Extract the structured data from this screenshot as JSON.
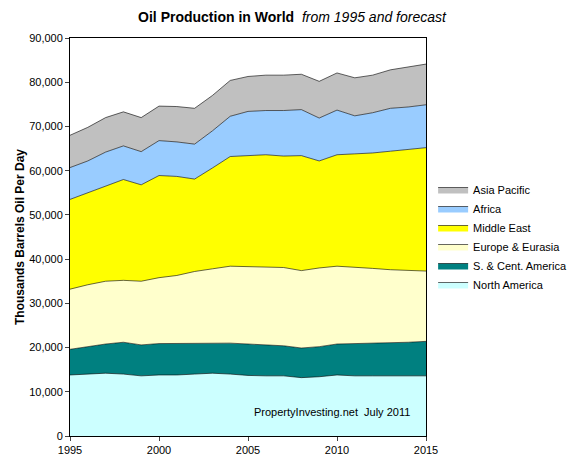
{
  "chart_data": {
    "type": "area",
    "title": "Oil Production in World",
    "subtitle": "from 1995 and forecast",
    "y_label": "Thousands Barrels Oil Per Day",
    "annotation": "PropertyInvesting.net  July 2011",
    "stacked": true,
    "grid": false,
    "legend": "right",
    "x": [
      1995,
      1996,
      1997,
      1998,
      1999,
      2000,
      2001,
      2002,
      2003,
      2004,
      2005,
      2006,
      2007,
      2008,
      2009,
      2010,
      2011,
      2012,
      2013,
      2014,
      2015
    ],
    "xlim": [
      1995,
      2015
    ],
    "xticks": [
      1995,
      2000,
      2005,
      2010,
      2015
    ],
    "ylim": [
      0,
      90000
    ],
    "yticks": [
      0,
      {
        "value": 10000,
        "label": "10,000"
      },
      {
        "value": 20000,
        "label": "20,000"
      },
      {
        "value": 30000,
        "label": "30,000"
      },
      {
        "value": 40000,
        "label": "40,000"
      },
      {
        "value": 50000,
        "label": "50,000"
      },
      {
        "value": 60000,
        "label": "60,000"
      },
      {
        "value": 70000,
        "label": "70,000"
      },
      {
        "value": 80000,
        "label": "80,000"
      },
      {
        "value": 90000,
        "label": "90,000"
      }
    ],
    "series": [
      {
        "name": "North America",
        "color": "#ccffff",
        "values": [
          13800,
          14000,
          14200,
          14000,
          13600,
          13800,
          13800,
          14000,
          14200,
          14000,
          13700,
          13600,
          13600,
          13200,
          13400,
          13800,
          13600,
          13600,
          13600,
          13600,
          13600
        ]
      },
      {
        "name": "S. & Cent. America",
        "color": "#008080",
        "values": [
          5800,
          6200,
          6600,
          7200,
          7000,
          7100,
          7100,
          7000,
          6800,
          7000,
          7100,
          7000,
          6800,
          6700,
          6800,
          7000,
          7300,
          7400,
          7400,
          7600,
          7800
        ]
      },
      {
        "name": "Europe & Eurasia",
        "color": "#ffffcc",
        "values": [
          13600,
          14000,
          14200,
          14000,
          14400,
          14900,
          15400,
          16200,
          16800,
          17400,
          17500,
          17600,
          17700,
          17500,
          17800,
          17600,
          17300,
          16900,
          16600,
          16200,
          15900
        ]
      },
      {
        "name": "Middle East",
        "color": "#ffff00",
        "values": [
          20300,
          20800,
          21600,
          22800,
          21800,
          23100,
          22400,
          20900,
          22800,
          24800,
          25100,
          25400,
          25200,
          26000,
          24200,
          25200,
          25600,
          26100,
          26800,
          27400,
          27900
        ]
      },
      {
        "name": "Africa",
        "color": "#99ccff",
        "values": [
          7200,
          7200,
          7600,
          7600,
          7500,
          7900,
          7800,
          7900,
          8400,
          9100,
          10000,
          10000,
          10300,
          10400,
          9700,
          10100,
          8600,
          9100,
          9700,
          9600,
          9700
        ]
      },
      {
        "name": "Asia Pacific",
        "color": "#c0c0c0",
        "values": [
          7300,
          7600,
          7800,
          7700,
          7700,
          7800,
          8000,
          8100,
          8000,
          8100,
          7900,
          8000,
          8000,
          8000,
          8300,
          8400,
          8600,
          8500,
          8700,
          9000,
          9200
        ]
      }
    ]
  }
}
